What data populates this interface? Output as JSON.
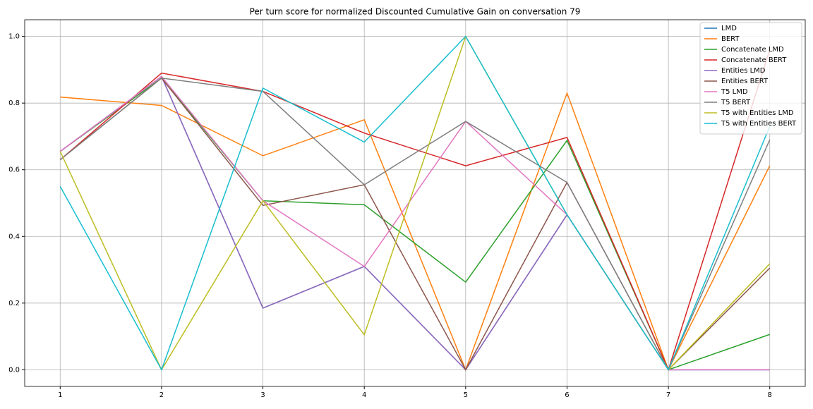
{
  "chart_data": {
    "type": "line",
    "title": "Per turn score for normalized Discounted Cumulative Gain on conversation 79",
    "x": [
      1,
      2,
      3,
      4,
      5,
      6,
      7,
      8
    ],
    "series": [
      {
        "name": "LMD",
        "color": "#1f77b4",
        "values": [
          0.655,
          0.88,
          0.185,
          0.31,
          0,
          0.465,
          0,
          0
        ]
      },
      {
        "name": "BERT",
        "color": "#ff7f0e",
        "values": [
          0.818,
          0.793,
          0.642,
          0.75,
          0,
          0.83,
          0,
          0.612
        ]
      },
      {
        "name": "Concatenate LMD",
        "color": "#2ca02c",
        "values": [
          0.655,
          0.875,
          0.507,
          0.495,
          0.263,
          0.688,
          0,
          0.106
        ]
      },
      {
        "name": "Concatenate BERT",
        "color": "#d62728",
        "values": [
          0.63,
          0.89,
          0.835,
          0.71,
          0.612,
          0.697,
          0,
          0.96
        ]
      },
      {
        "name": "Entities LMD",
        "color": "#9467bd",
        "values": [
          0.655,
          0.88,
          0.185,
          0.31,
          0,
          0.465,
          0,
          0
        ]
      },
      {
        "name": "Entities BERT",
        "color": "#8c564b",
        "values": [
          0.63,
          0.875,
          0.493,
          0.555,
          0,
          0.562,
          0,
          0.305
        ]
      },
      {
        "name": "T5 LMD",
        "color": "#e377c2",
        "values": [
          0.655,
          0.88,
          0.507,
          0.31,
          0.745,
          0.465,
          0,
          0
        ]
      },
      {
        "name": "T5 BERT",
        "color": "#7f7f7f",
        "values": [
          0.63,
          0.875,
          0.835,
          0.555,
          0.745,
          0.562,
          0,
          0.69
        ]
      },
      {
        "name": "T5 with Entities LMD",
        "color": "#bcbd22",
        "values": [
          0.655,
          0,
          0.507,
          0.105,
          1.0,
          0.465,
          0,
          0.318
        ]
      },
      {
        "name": "T5 with Entities BERT",
        "color": "#17becf",
        "values": [
          0.55,
          0,
          0.845,
          0.683,
          1.0,
          0.465,
          0,
          0.73
        ]
      }
    ],
    "xlim": [
      0.65,
      8.35
    ],
    "ylim": [
      -0.05,
      1.05
    ],
    "xticks": [
      1,
      2,
      3,
      4,
      5,
      6,
      7,
      8
    ],
    "yticks": [
      {
        "value": 0,
        "label": "0.0"
      },
      0.2,
      0.4,
      0.6,
      0.8,
      {
        "value": 1,
        "label": "1.0"
      }
    ],
    "grid": true,
    "legend": "upper right"
  }
}
